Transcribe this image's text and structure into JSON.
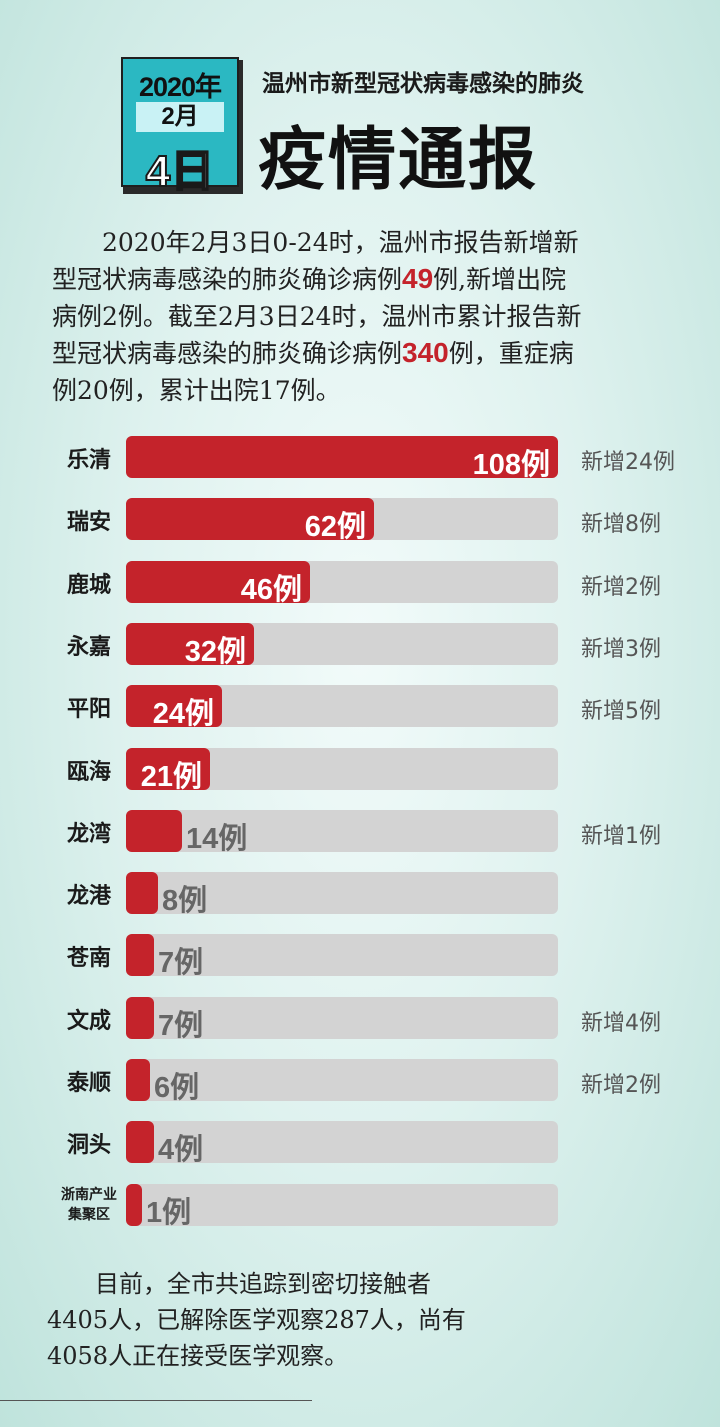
{
  "header": {
    "year": "2020年",
    "month": "2月",
    "day": "4日",
    "subtitle": "温州市新型冠状病毒感染的肺炎",
    "title": "疫情通报"
  },
  "intro": {
    "l1": "　　2020年2月3日0-24时，温州市报告新增新",
    "l2a": "型冠状病毒感染的肺炎确诊病例",
    "l2b": "49",
    "l2c": "例,新增出院",
    "l3": "病例2例。截至2月3日24时，温州市累计报告新",
    "l4a": "型冠状病毒感染的肺炎确诊病例",
    "l4b": "340",
    "l4c": "例，重症病",
    "l5": "例20例，累计出院17例。"
  },
  "chart_data": {
    "type": "bar",
    "categories": [
      "乐清",
      "瑞安",
      "鹿城",
      "永嘉",
      "平阳",
      "瓯海",
      "龙湾",
      "龙港",
      "苍南",
      "文成",
      "泰顺",
      "洞头",
      "浙南产业集聚区"
    ],
    "values": [
      108,
      62,
      46,
      32,
      24,
      21,
      14,
      8,
      7,
      7,
      6,
      4,
      1
    ],
    "value_labels": [
      "108例",
      "62例",
      "46例",
      "32例",
      "24例",
      "21例",
      "14例",
      "8例",
      "7例",
      "7例",
      "6例",
      "4例",
      "1例"
    ],
    "new_cases": [
      "新增24例",
      "新增8例",
      "新增2例",
      "新增3例",
      "新增5例",
      "",
      "新增1例",
      "",
      "",
      "新增4例",
      "新增2例",
      "",
      ""
    ],
    "xlim": [
      0,
      108
    ],
    "colors": {
      "bar": "#c4232b",
      "track": "#d3d3d3"
    }
  },
  "category_display": {
    "zn_line1": "浙南产业",
    "zn_line2": "集聚区"
  },
  "footer": {
    "l1": "　　目前，全市共追踪到密切接触者",
    "l2": "4405人，已解除医学观察287人，尚有",
    "l3": "4058人正在接受医学观察。"
  }
}
